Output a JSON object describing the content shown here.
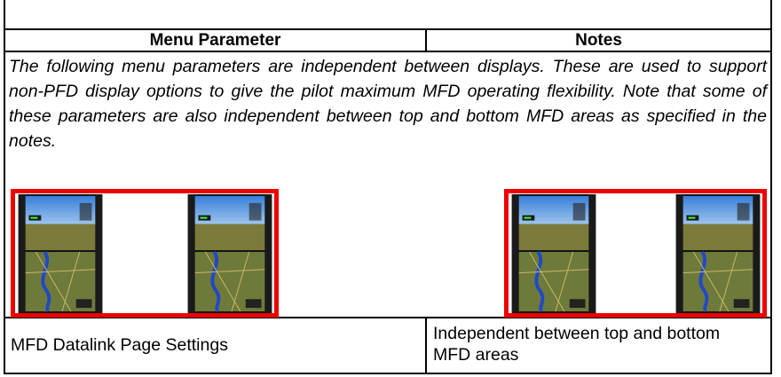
{
  "table": {
    "header": [
      "Menu Parameter",
      "Notes"
    ],
    "intro": "The following menu parameters are independent between displays. These are used to support non-PFD display options to give the pilot maximum MFD operating flexibility. Note that some of these parameters are also independent between top and bottom MFD areas as specified in the notes.",
    "rows": [
      [
        "MFD Datalink Page Settings",
        "Independent between top and bottom MFD areas"
      ]
    ]
  }
}
